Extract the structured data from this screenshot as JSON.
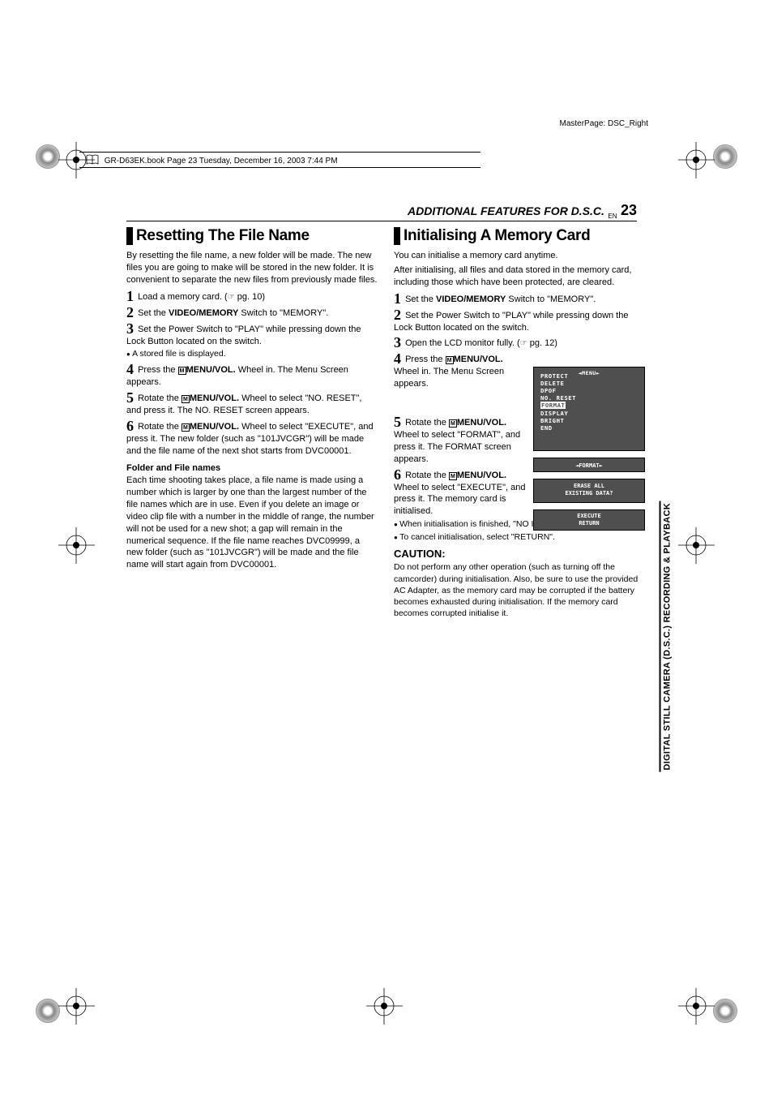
{
  "meta": {
    "master_page": "MasterPage: DSC_Right",
    "header_bar": "GR-D63EK.book  Page 23  Tuesday, December 16, 2003  7:44 PM",
    "section_title": "ADDITIONAL FEATURES FOR D.S.C.",
    "en_label": "EN",
    "page_number": "23",
    "sidebar": "DIGITAL STILL CAMERA (D.S.C.) RECORDING & PLAYBACK"
  },
  "left": {
    "heading": "Resetting The File Name",
    "intro": "By resetting the file name, a new folder will be made. The new files you are going to make will be stored in the new folder. It is convenient to separate the new files from previously made files.",
    "s1_a": "Load a memory card. (",
    "s1_b": " pg. 10)",
    "s2_a": "Set the ",
    "s2_b": "VIDEO/MEMORY",
    "s2_c": " Switch to \"MEMORY\".",
    "s3": "Set the Power Switch to \"PLAY\" while pressing down the Lock Button located on the switch.",
    "s3_bullet": "A stored file is displayed.",
    "s4_a": "Press the ",
    "s4_b": "MENU/VOL.",
    "s4_c": " Wheel in. The Menu Screen appears.",
    "s5_a": "Rotate the ",
    "s5_b": "MENU/VOL.",
    "s5_c": " Wheel to select \"NO. RESET\", and press it. The NO. RESET screen appears.",
    "s6_a": "Rotate the ",
    "s6_b": "MENU/VOL.",
    "s6_c": " Wheel to select \"EXECUTE\", and press it. The new folder (such as \"101JVCGR\") will be made and the file name of the next shot starts from DVC00001.",
    "sub": "Folder and File names",
    "sub_body": "Each time shooting takes place, a file name is made using a number which is larger by one than the largest number of the file names which are in use. Even if you delete an image or video clip file with a number in the middle of range, the number will not be used for a new shot; a gap will remain in the numerical sequence. If the file name reaches DVC09999, a new folder (such as \"101JVCGR\") will be made and the file name will start again from DVC00001."
  },
  "right": {
    "heading": "Initialising A Memory Card",
    "intro_a": "You can initialise a memory card anytime.",
    "intro_b": "After initialising, all files and data stored in the memory card, including those which have been protected, are cleared.",
    "s1_a": "Set the ",
    "s1_b": "VIDEO/MEMORY",
    "s1_c": " Switch to \"MEMORY\".",
    "s2": "Set the Power Switch to \"PLAY\" while pressing down the Lock Button located on the switch.",
    "s3_a": "Open the LCD monitor fully. (",
    "s3_b": " pg. 12)",
    "s4_a": "Press the ",
    "s4_b": "MENU/VOL.",
    "s4_c": " Wheel in. The Menu Screen appears.",
    "s5_a": "Rotate the ",
    "s5_b": "MENU/VOL.",
    "s5_c": " Wheel to select \"FORMAT\", and press it. The FORMAT screen appears.",
    "s6_a": "Rotate the ",
    "s6_b": "MENU/VOL.",
    "s6_c": " Wheel to select \"EXECUTE\", and press it. The memory card is initialised.",
    "bullet1": "When initialisation is finished, \"NO IMAGES STORED\" appears.",
    "bullet2": "To cancel initialisation, select \"RETURN\".",
    "caution_label": "CAUTION:",
    "caution_body": "Do not perform any other operation (such as turning off the camcorder) during initialisation. Also, be sure to use the provided AC Adapter, as the memory card may be corrupted if the battery becomes exhausted during initialisation. If the memory card becomes corrupted initialise it."
  },
  "lcd1": {
    "menu": "MENU",
    "items": [
      "PROTECT",
      "DELETE",
      "DPOF",
      "NO. RESET",
      "FORMAT",
      "DISPLAY",
      "BRIGHT",
      "END"
    ],
    "highlight_index": 4
  },
  "lcd2": {
    "title": "FORMAT",
    "line1": "ERASE ALL",
    "line2": "EXISTING DATA?",
    "opt1": "EXECUTE",
    "opt2": "RETURN"
  },
  "style": {
    "lcd_bg": "#4f4f50",
    "lcd_fg": "#ffffff",
    "text_color": "#000000",
    "page_bg": "#ffffff"
  }
}
